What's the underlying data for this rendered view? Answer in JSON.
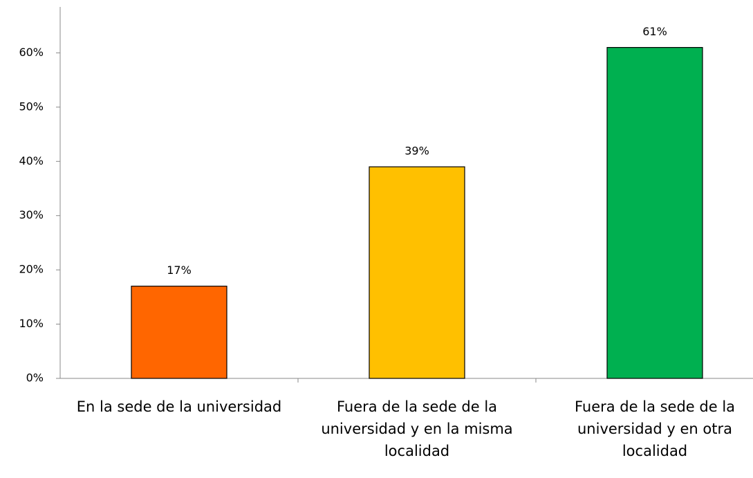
{
  "chart_data": {
    "type": "bar",
    "categories": [
      "En la sede de la universidad",
      "Fuera de la sede de la universidad y en la misma localidad",
      "Fuera de la sede de la universidad y en otra localidad"
    ],
    "values": [
      17,
      39,
      61
    ],
    "value_labels": [
      "17%",
      "39%",
      "61%"
    ],
    "colors": [
      "#ff6600",
      "#ffc000",
      "#00b050"
    ],
    "ylim": [
      0,
      70
    ],
    "yticks": [
      {
        "value": 0,
        "label": "0%"
      },
      {
        "value": 10,
        "label": "10%"
      },
      {
        "value": 20,
        "label": "20%"
      },
      {
        "value": 30,
        "label": "30%"
      },
      {
        "value": 40,
        "label": "40%"
      },
      {
        "value": 50,
        "label": "50%"
      },
      {
        "value": 60,
        "label": "60%"
      }
    ],
    "grid": false
  }
}
